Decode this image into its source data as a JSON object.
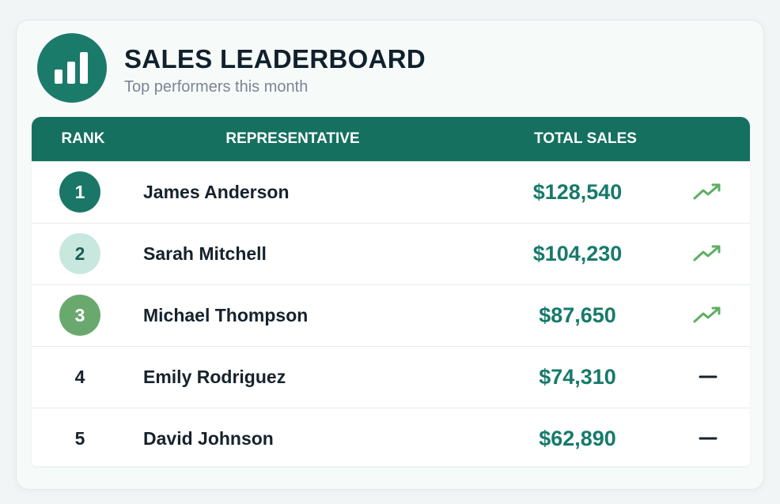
{
  "header": {
    "title": "SALES LEADERBOARD",
    "subtitle": "Top performers this month"
  },
  "table": {
    "columns": [
      "RANK",
      "REPRESENTATIVE",
      "TOTAL SALES"
    ],
    "rows": [
      {
        "rank": 1,
        "name": "James Anderson",
        "sales": "$128,540",
        "trend": "up"
      },
      {
        "rank": 2,
        "name": "Sarah Mitchell",
        "sales": "$104,230",
        "trend": "up"
      },
      {
        "rank": 3,
        "name": "Michael Thompson",
        "sales": "$87,650",
        "trend": "up"
      },
      {
        "rank": 4,
        "name": "Emily Rodriguez",
        "sales": "$74,310",
        "trend": "flat"
      },
      {
        "rank": 5,
        "name": "David Johnson",
        "sales": "$62,890",
        "trend": "flat"
      }
    ]
  }
}
